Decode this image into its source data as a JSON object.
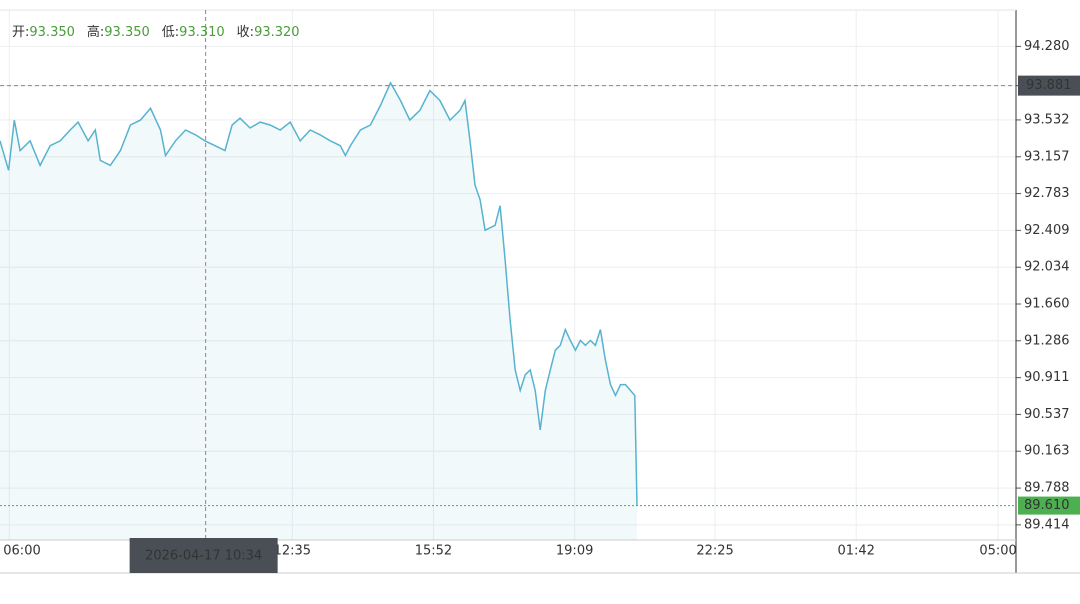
{
  "chart_data": {
    "type": "line",
    "header": [
      {
        "name": "开:",
        "value": "93.350"
      },
      {
        "name": "高:",
        "value": "93.350"
      },
      {
        "name": "低:",
        "value": "93.310"
      },
      {
        "name": "收:",
        "value": "93.320"
      }
    ],
    "x": [
      -13,
      -1,
      7,
      15,
      29,
      43,
      57,
      71,
      85,
      96,
      110,
      120,
      127,
      141,
      155,
      169,
      183,
      197,
      211,
      218,
      232,
      246,
      260,
      273,
      287,
      301,
      311,
      322,
      336,
      350,
      364,
      378,
      392,
      406,
      420,
      434,
      448,
      462,
      469,
      476,
      490,
      504,
      518,
      532,
      546,
      559,
      573,
      587,
      601,
      615,
      629,
      636,
      643,
      650,
      657,
      664,
      678,
      685,
      692,
      699,
      706,
      713,
      720,
      727,
      734,
      741,
      748,
      755,
      762,
      769,
      776,
      783,
      790,
      797,
      804,
      811,
      818,
      825,
      832,
      839,
      846,
      853,
      860,
      867,
      873,
      876
    ],
    "series": [
      {
        "color": "#56b3cf",
        "values": [
          93.32,
          93.02,
          93.53,
          93.22,
          93.32,
          93.07,
          93.27,
          93.32,
          93.43,
          93.51,
          93.32,
          93.43,
          93.12,
          93.07,
          93.22,
          93.48,
          93.53,
          93.65,
          93.43,
          93.17,
          93.32,
          93.43,
          93.38,
          93.32,
          93.27,
          93.22,
          93.48,
          93.55,
          93.45,
          93.51,
          93.48,
          93.43,
          93.51,
          93.32,
          93.43,
          93.38,
          93.32,
          93.27,
          93.17,
          93.27,
          93.43,
          93.48,
          93.68,
          93.91,
          93.73,
          93.53,
          93.63,
          93.83,
          93.73,
          93.53,
          93.63,
          93.73,
          93.32,
          92.87,
          92.72,
          92.41,
          92.46,
          92.66,
          92.11,
          91.5,
          90.99,
          90.78,
          90.94,
          90.99,
          90.78,
          90.38,
          90.78,
          90.99,
          91.19,
          91.24,
          91.4,
          91.29,
          91.19,
          91.29,
          91.24,
          91.29,
          91.24,
          91.4,
          91.09,
          90.84,
          90.73,
          90.84,
          90.84,
          90.78,
          90.73,
          89.61
        ]
      }
    ],
    "xlim": [
      -13,
      1405
    ],
    "xticks": [
      {
        "value": 0,
        "label": "06:00"
      },
      {
        "value": 395,
        "label": "12:35"
      },
      {
        "value": 592,
        "label": "15:52"
      },
      {
        "value": 789,
        "label": "19:09"
      },
      {
        "value": 985,
        "label": "22:25"
      },
      {
        "value": 1182,
        "label": "01:42"
      },
      {
        "value": 1380,
        "label": "05:00"
      }
    ],
    "ylim": [
      89.26,
      94.65
    ],
    "yticks": [
      {
        "value": 94.28,
        "label": "94.280"
      },
      93.881,
      93.532,
      93.157,
      92.783,
      92.409,
      92.034,
      {
        "value": 91.66,
        "label": "91.660"
      },
      91.286,
      90.911,
      90.537,
      90.163,
      89.788,
      89.414
    ],
    "crosshair": {
      "x": {
        "value": 274,
        "label": "2026-04-17 10:34"
      },
      "y": 93.881
    },
    "last_price": {
      "value": 89.61,
      "label": "89.610"
    },
    "grid": true
  }
}
